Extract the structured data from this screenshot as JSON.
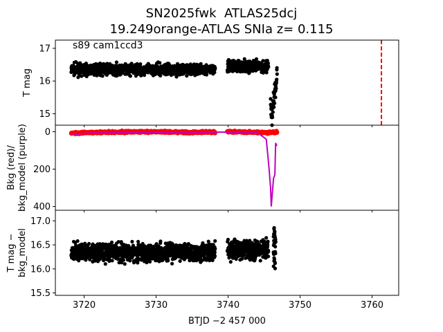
{
  "chart_data": [
    {
      "panel": "top",
      "type": "scatter",
      "title_line1": "SN2025fwk  ATLAS25dcj",
      "title_line2": "19.249orange-ATLAS SNIa z= 0.115",
      "annotation": "s89 cam1ccd3",
      "ylabel": "T mag",
      "y_inverted": true,
      "ylim": [
        17.25,
        14.65
      ],
      "yticks": [
        "15",
        "16",
        "17"
      ],
      "xlim": [
        3716.0,
        3763.7
      ],
      "series": [
        {
          "color": "#000000",
          "segments": [
            {
              "x_start": 3718.2,
              "x_end": 3738.2,
              "median": 16.35,
              "spread": 0.28
            },
            {
              "x_start": 3739.9,
              "x_end": 3745.6,
              "median": 16.45,
              "spread": 0.3
            },
            {
              "x_start": 3745.9,
              "x_end": 3746.8,
              "median": 15.5,
              "spread": 0.6
            }
          ]
        }
      ],
      "marker": {
        "type": "vertical-dashed-line",
        "x": 3761.3,
        "color": "#ff0000"
      }
    },
    {
      "panel": "middle",
      "type": "line",
      "ylabel": "Bkg (red)/\nbkg_model (purple)",
      "ylim": [
        -35,
        420
      ],
      "yticks": [
        "0",
        "200",
        "400"
      ],
      "xlim": [
        3716.0,
        3763.7
      ],
      "series": [
        {
          "color": "#ff0000",
          "style": "points",
          "x": [
            3718.2,
            3720,
            3725,
            3730,
            3735,
            3738.2,
            3740,
            3745.5,
            3746.5
          ],
          "y": [
            8,
            5,
            2,
            0,
            3,
            1,
            0,
            5,
            2
          ]
        },
        {
          "color": "#bf00bf",
          "style": "line",
          "x": [
            3718.2,
            3719,
            3720,
            3730,
            3738.2,
            3740,
            3744,
            3745.3,
            3745.7,
            3745.9,
            3746.0,
            3746.3,
            3746.5,
            3746.6,
            3746.7,
            3746.8
          ],
          "y": [
            10,
            14,
            8,
            3,
            2,
            2,
            3,
            40,
            200,
            300,
            400,
            250,
            230,
            60,
            70,
            75
          ]
        }
      ]
    },
    {
      "panel": "bottom",
      "type": "scatter",
      "ylabel": "T mag −\nbkg_model",
      "y_inverted": true,
      "ylim": [
        17.22,
        15.45
      ],
      "yticks": [
        "15.5",
        "16.0",
        "16.5",
        "17.0"
      ],
      "xlabel": "BTJD −2 457 000",
      "xlim": [
        3716.0,
        3763.7
      ],
      "xticks": [
        "3720",
        "3730",
        "3740",
        "3750",
        "3760"
      ],
      "series": [
        {
          "color": "#000000",
          "segments": [
            {
              "x_start": 3718.2,
              "x_end": 3738.2,
              "median": 16.35,
              "spread": 0.32
            },
            {
              "x_start": 3739.9,
              "x_end": 3745.6,
              "median": 16.4,
              "spread": 0.34
            },
            {
              "x_start": 3746.3,
              "x_end": 3746.6,
              "median": 16.45,
              "spread": 0.75
            }
          ]
        }
      ]
    }
  ]
}
